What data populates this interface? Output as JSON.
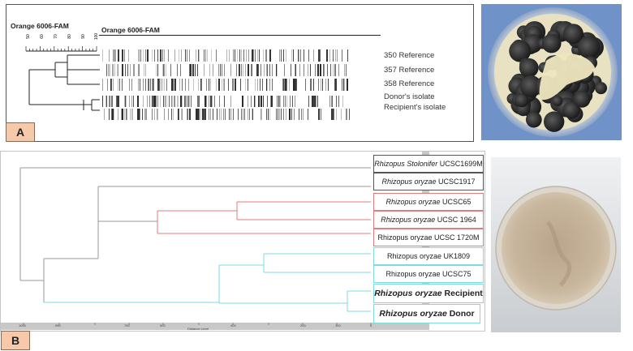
{
  "panelA": {
    "letter": "A",
    "dendro_title": "Orange 6006-FAM",
    "gel_title": "Orange 6006-FAM",
    "scale_ticks": [
      "50",
      "60",
      "70",
      "80",
      "90",
      "100"
    ],
    "lanes": [
      "350 Reference",
      "357 Reference",
      "358 Reference",
      "Donor's isolate",
      "Recipient's isolate"
    ]
  },
  "panelB": {
    "letter": "B",
    "axis_label": "Distance Level",
    "axis_ticks": [
      "1000",
      "950",
      "750",
      "700",
      "500",
      "400",
      "350",
      "250",
      "200",
      "100",
      "50",
      "0"
    ],
    "leaves": [
      {
        "genus": "Rhizopus Stolonifer",
        "strain": "UCSC1699M",
        "italic": true,
        "bold": false,
        "color": "#555555"
      },
      {
        "genus": "Rhizopus oryzae",
        "strain": "UCSC1917",
        "italic": true,
        "bold": false,
        "color": "#555555"
      },
      {
        "genus": "Rhizopus oryzae",
        "strain": "UCSC65",
        "italic": true,
        "bold": false,
        "color": "#e07c7c"
      },
      {
        "genus": "Rhizopus oryzae",
        "strain": "UCSC 1964",
        "italic": true,
        "bold": false,
        "color": "#e07c7c"
      },
      {
        "genus": "Rhizopus oryzae",
        "strain": "UCSC 1720M",
        "italic": false,
        "bold": false,
        "color": "#e07c7c"
      },
      {
        "genus": "Rhizopus oryzae",
        "strain": "UK1809",
        "italic": false,
        "bold": false,
        "color": "#7fd9e0"
      },
      {
        "genus": "Rhizopus oryzae",
        "strain": "UCSC75",
        "italic": false,
        "bold": false,
        "color": "#7fd9e0"
      },
      {
        "genus": "Rhizopus oryzae",
        "strain": "Recipient",
        "italic": true,
        "bold": true,
        "color": "#7fd9e0"
      },
      {
        "genus": "Rhizopus oryzae",
        "strain": "Donor",
        "italic": true,
        "bold": true,
        "color": "#7fd9e0"
      }
    ]
  },
  "colors": {
    "panel_letter_bg": "#f7c9ab",
    "cluster_gray": "#9a9a9a",
    "cluster_red": "#e07c7c",
    "cluster_cyan": "#7fd9e0"
  }
}
